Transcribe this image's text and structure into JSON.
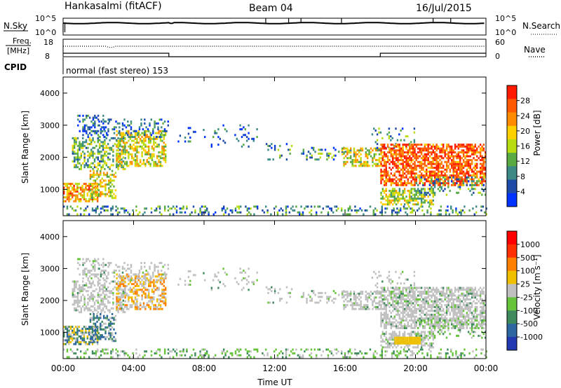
{
  "header": {
    "station": "Hankasalmi (fitACF)",
    "beam": "Beam 04",
    "date": "16/Jul/2015"
  },
  "noise_panel": {
    "left_label": "N.Sky",
    "right_label": "N.Search",
    "ticks_left": [
      "10^5",
      "10^0"
    ],
    "ticks_right": [
      "10^5",
      "10^0"
    ]
  },
  "freq_panel": {
    "left_label_1": "Freq.",
    "left_label_2": "[MHz]",
    "right_label": "Nave",
    "ticks_left": [
      "18",
      "8"
    ],
    "ticks_right": [
      "60",
      "0"
    ]
  },
  "cpid_panel": {
    "label": "CPID",
    "mode": "normal (fast stereo) 153"
  },
  "power_panel": {
    "ylabel": "Slant Range [km]",
    "yticks": [
      "4000",
      "3000",
      "2000",
      "1000"
    ],
    "colorbar_label": "Power [dB]",
    "colorbar_ticks": [
      "28",
      "24",
      "20",
      "16",
      "12",
      "8",
      "4"
    ],
    "colors": [
      "#0033ff",
      "#1f4ba8",
      "#3c8a86",
      "#5aaa44",
      "#b8dc12",
      "#ffd000",
      "#ff8c00",
      "#ff5a00",
      "#ff1a00"
    ]
  },
  "velocity_panel": {
    "ylabel": "Slant Range [km]",
    "yticks": [
      "4000",
      "3000",
      "2000",
      "1000"
    ],
    "colorbar_label": "Velocity [m s⁻¹]",
    "colorbar_ticks": [
      "1000",
      "500",
      "100",
      "25",
      "-25",
      "-100",
      "-500",
      "-1000"
    ],
    "colors": [
      "#2238b0",
      "#2d66a0",
      "#3f8a5d",
      "#66c43a",
      "#c0c0c0",
      "#f0c000",
      "#ff8000",
      "#ff3000",
      "#ff0000"
    ]
  },
  "xaxis": {
    "ticks": [
      "00:00",
      "04:00",
      "08:00",
      "12:00",
      "16:00",
      "20:00",
      "00:00"
    ],
    "label": "Time UT"
  },
  "chart_data": [
    {
      "type": "line",
      "title": "N.Sky / N.Search",
      "y_scale": "log",
      "ylim": [
        1,
        100000
      ],
      "x": [
        "00:00",
        "24:00"
      ]
    },
    {
      "type": "line",
      "title": "Freq. / Nave",
      "ylim_left": [
        8,
        18
      ],
      "ylim_right": [
        0,
        60
      ],
      "series": [
        {
          "name": "Freq.",
          "x": [
            0,
            6,
            6,
            18,
            18,
            24
          ],
          "values": [
            10,
            10,
            8,
            8,
            10,
            10
          ]
        },
        {
          "name": "Nave",
          "x": [
            0,
            24
          ],
          "values": [
            36,
            36
          ]
        }
      ]
    },
    {
      "type": "heatmap",
      "title": "Power [dB]",
      "x_range_hours": [
        0,
        24
      ],
      "ylim": [
        180,
        4500
      ],
      "ylabel": "Slant Range [km]",
      "xlabel": "Time UT",
      "color_scale": [
        0,
        30
      ]
    },
    {
      "type": "heatmap",
      "title": "Velocity [m s⁻¹]",
      "x_range_hours": [
        0,
        24
      ],
      "ylim": [
        180,
        4500
      ],
      "ylabel": "Slant Range [km]",
      "xlabel": "Time UT",
      "color_scale": [
        -1000,
        1000
      ]
    }
  ]
}
